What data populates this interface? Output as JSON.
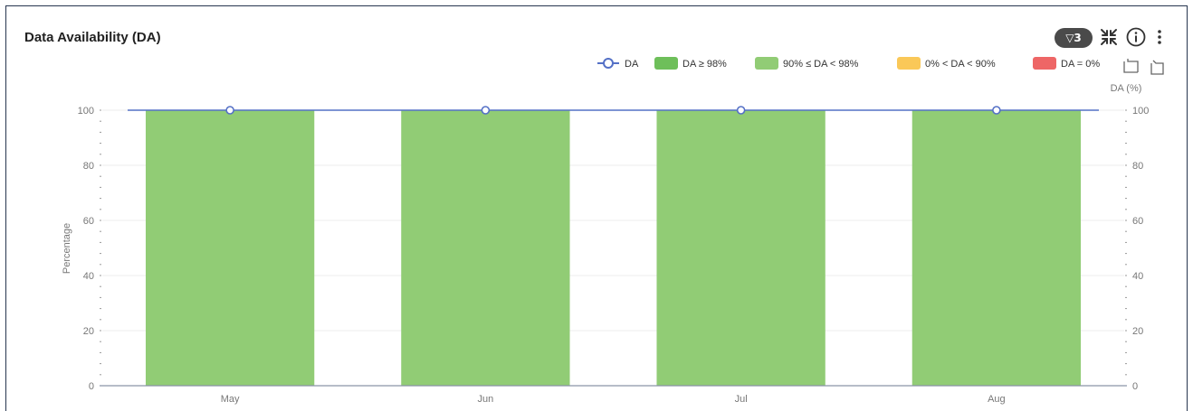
{
  "header": {
    "title": "Data Availability (DA)",
    "filter_label": "▽3"
  },
  "icons": {
    "filter": "filter-icon",
    "collapse": "collapse-icon",
    "info": "info-icon",
    "more": "more-vertical-icon",
    "zoom": "zoom-select-icon",
    "zoom_reset": "zoom-reset-icon"
  },
  "colors": {
    "bar": "#91cc75",
    "line": "#5470c6",
    "legend_da98": "#6ebf5a",
    "legend_90_98": "#91cc75",
    "legend_0_90": "#fac858",
    "legend_zero": "#ee6666"
  },
  "chart_data": {
    "type": "bar",
    "categories": [
      "May",
      "Jun",
      "Jul",
      "Aug"
    ],
    "series": [
      {
        "name": "DA ≥ 98%",
        "type": "bar",
        "values": [
          100,
          100,
          100,
          100
        ]
      },
      {
        "name": "DA",
        "type": "line",
        "values": [
          100,
          100,
          100,
          100
        ]
      }
    ],
    "legend": [
      "DA",
      "DA ≥ 98%",
      "90% ≤ DA < 98%",
      "0% < DA < 90%",
      "DA = 0%"
    ],
    "legend_position": "top-right",
    "ylabel": "Percentage",
    "ylabel_right": "DA (%)",
    "ylim": [
      0,
      100
    ],
    "yticks": [
      0,
      20,
      40,
      60,
      80,
      100
    ],
    "grid": true
  }
}
